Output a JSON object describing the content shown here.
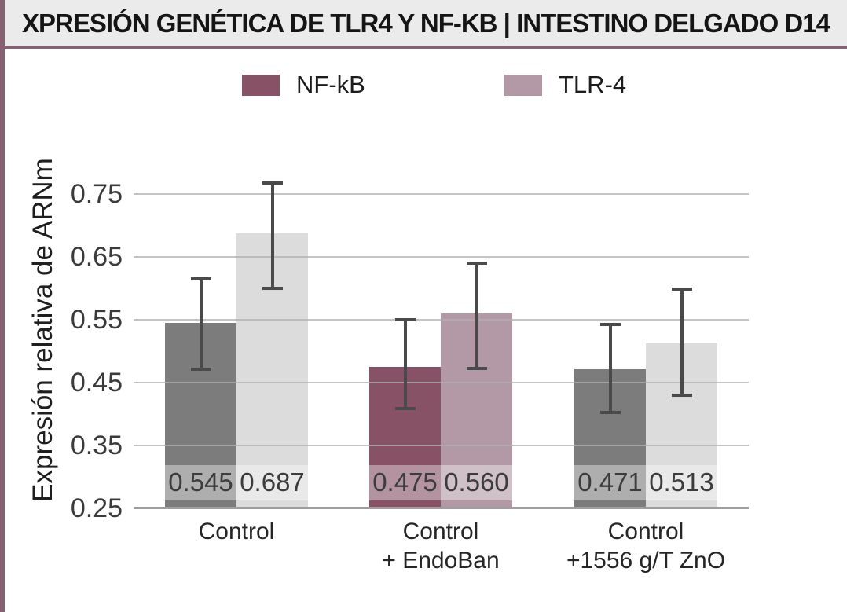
{
  "header": {
    "title": "XPRESIÓN GENÉTICA DE TLR4 Y NF-KB | INTESTINO DELGADO D14"
  },
  "legend": {
    "items": [
      {
        "label": "NF-kB",
        "color": "#875166"
      },
      {
        "label": "TLR-4",
        "color": "#b399a5"
      }
    ]
  },
  "chart_data": {
    "type": "bar",
    "title": "XPRESIÓN GENÉTICA DE TLR4 Y NF-KB | INTESTINO DELGADO D14",
    "ylabel": "Expresión relativa de ARNm",
    "xlabel": "",
    "ylim": [
      0.25,
      0.78
    ],
    "yticks": [
      0.25,
      0.35,
      0.45,
      0.55,
      0.65,
      0.75
    ],
    "grid": true,
    "legend_position": "top-center",
    "categories": [
      [
        "Control"
      ],
      [
        "Control",
        "+ EndoBan"
      ],
      [
        "Control",
        "+1556 g/T ZnO"
      ]
    ],
    "series": [
      {
        "name": "NF-kB",
        "values": [
          0.545,
          0.475,
          0.471
        ],
        "value_labels": [
          "0.545",
          "0.475",
          "0.471"
        ],
        "error_top": [
          0.615,
          0.55,
          0.543
        ],
        "error_bottom": [
          0.471,
          0.409,
          0.403
        ],
        "bar_colors": [
          "#7c7c7c",
          "#875166",
          "#7c7c7c"
        ]
      },
      {
        "name": "TLR-4",
        "values": [
          0.687,
          0.56,
          0.513
        ],
        "value_labels": [
          "0.687",
          "0.560",
          "0.513"
        ],
        "error_top": [
          0.768,
          0.64,
          0.599
        ],
        "error_bottom": [
          0.6,
          0.473,
          0.43
        ],
        "bar_colors": [
          "#dcdcdc",
          "#b399a5",
          "#dcdcdc"
        ]
      }
    ]
  },
  "colors": {
    "accent": "#866073",
    "title_bg": "#ebebeb",
    "grid": "#b0b0b0",
    "axis": "#9e9e9e",
    "error": "#4a4a4a",
    "value_band": "rgba(255,255,255,0.38)",
    "nfkb": "#875166",
    "tlr4": "#b399a5",
    "control_dark_gray": "#7c7c7c",
    "control_light_gray": "#dcdcdc"
  }
}
